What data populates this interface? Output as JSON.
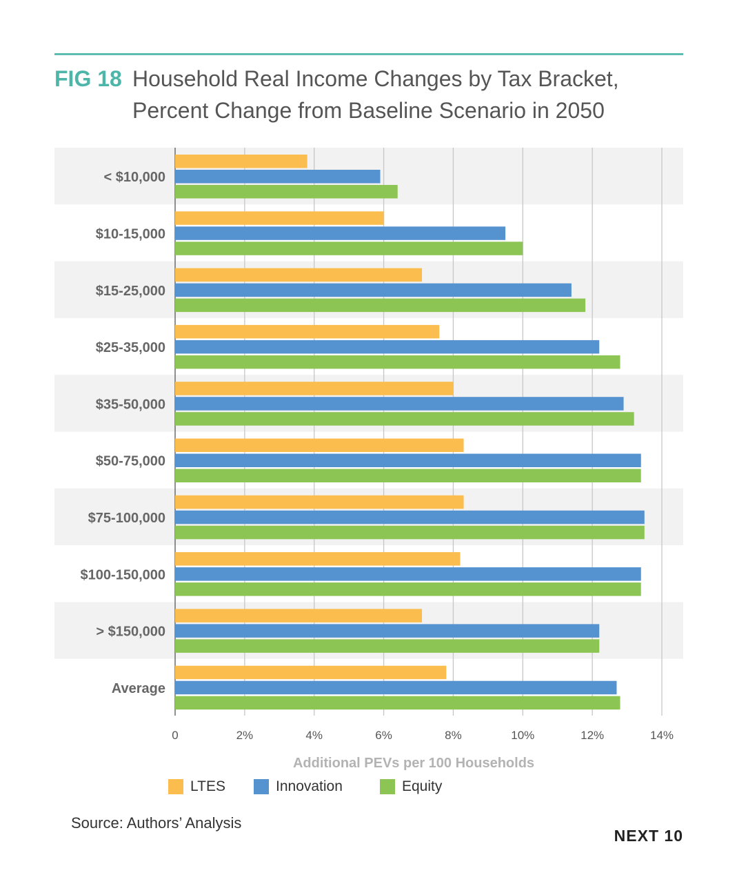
{
  "header": {
    "fig_label": "FIG 18",
    "title_line1": "Household Real Income Changes by Tax Bracket,",
    "title_line2": "Percent Change from Baseline Scenario in 2050"
  },
  "chart_data": {
    "type": "bar",
    "orientation": "horizontal",
    "categories": [
      "< $10,000",
      "$10-15,000",
      "$15-25,000",
      "$25-35,000",
      "$35-50,000",
      "$50-75,000",
      "$75-100,000",
      "$100-150,000",
      "> $150,000",
      "Average"
    ],
    "series": [
      {
        "name": "LTES",
        "color": "#fbbd4e",
        "values": [
          3.8,
          6.0,
          7.1,
          7.6,
          8.0,
          8.3,
          8.3,
          8.2,
          7.1,
          7.8
        ]
      },
      {
        "name": "Innovation",
        "color": "#5592d0",
        "values": [
          5.9,
          9.5,
          11.4,
          12.2,
          12.9,
          13.4,
          13.5,
          13.4,
          12.2,
          12.7
        ]
      },
      {
        "name": "Equity",
        "color": "#8cc553",
        "values": [
          6.4,
          10.0,
          11.8,
          12.8,
          13.2,
          13.4,
          13.5,
          13.4,
          12.2,
          12.8
        ]
      }
    ],
    "xlim": [
      0,
      14
    ],
    "xticks": [
      "0",
      "2%",
      "4%",
      "6%",
      "8%",
      "10%",
      "12%",
      "14%"
    ],
    "xlabel": "Additional PEVs per 100 Households",
    "ylabel": "",
    "grid": true,
    "legend_position": "bottom",
    "band_color": "#f2f2f2"
  },
  "footer": {
    "source": "Source: Authors’ Analysis",
    "brand": "NEXT 10"
  }
}
